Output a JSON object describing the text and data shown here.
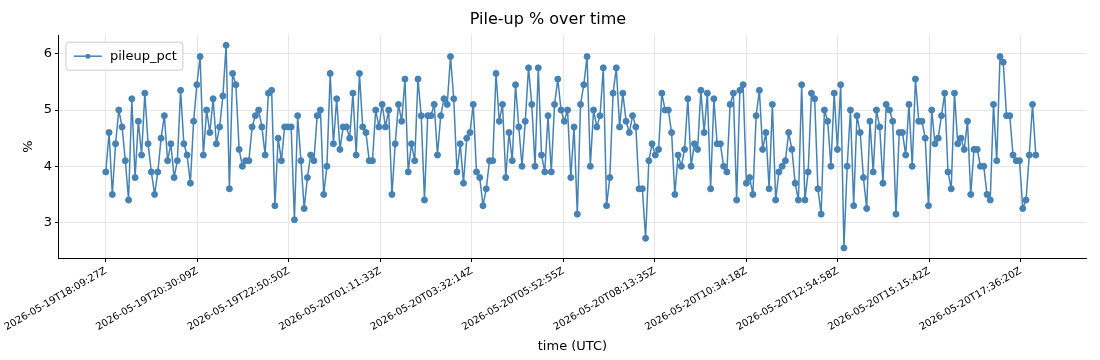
{
  "chart_data": {
    "type": "line",
    "title": "Pile-up % over time",
    "xlabel": "time (UTC)",
    "ylabel": "%",
    "x": [
      "2026-05-19T18:09:27",
      "2026-05-19T18:14:27",
      "2026-05-19T18:19:27",
      "2026-05-19T18:24:27",
      "2026-05-19T18:29:27",
      "2026-05-19T18:34:27",
      "2026-05-19T18:39:27",
      "2026-05-19T18:44:27",
      "2026-05-19T18:49:27",
      "2026-05-19T18:54:27",
      "2026-05-19T18:59:27",
      "2026-05-19T19:04:27",
      "2026-05-19T19:09:27",
      "2026-05-19T19:14:27",
      "2026-05-19T19:19:27",
      "2026-05-19T19:24:27",
      "2026-05-19T19:29:27",
      "2026-05-19T19:34:27",
      "2026-05-19T19:39:27",
      "2026-05-19T19:44:27",
      "2026-05-19T19:49:27",
      "2026-05-19T19:54:27",
      "2026-05-19T19:59:27",
      "2026-05-19T20:04:27",
      "2026-05-19T20:09:27",
      "2026-05-19T20:14:27",
      "2026-05-19T20:19:27",
      "2026-05-19T20:24:27",
      "2026-05-19T20:29:27",
      "2026-05-19T20:34:27",
      "2026-05-19T20:39:27",
      "2026-05-19T20:44:27",
      "2026-05-19T20:49:27",
      "2026-05-19T20:54:27",
      "2026-05-19T20:59:27",
      "2026-05-19T21:04:27",
      "2026-05-19T21:09:27",
      "2026-05-19T21:14:27",
      "2026-05-19T21:19:27",
      "2026-05-19T21:24:27",
      "2026-05-19T21:29:27",
      "2026-05-19T21:34:27",
      "2026-05-19T21:39:27",
      "2026-05-19T21:44:27",
      "2026-05-19T21:49:27",
      "2026-05-19T21:54:27",
      "2026-05-19T21:59:27",
      "2026-05-19T22:04:27",
      "2026-05-19T22:09:27",
      "2026-05-19T22:14:27",
      "2026-05-19T22:19:27",
      "2026-05-19T22:24:27",
      "2026-05-19T22:29:27",
      "2026-05-19T22:34:27",
      "2026-05-19T22:39:27",
      "2026-05-19T22:44:27",
      "2026-05-19T22:49:27",
      "2026-05-19T22:54:27",
      "2026-05-19T22:59:27",
      "2026-05-19T23:04:27",
      "2026-05-19T23:09:27",
      "2026-05-19T23:14:27",
      "2026-05-19T23:19:27",
      "2026-05-19T23:24:27",
      "2026-05-19T23:29:27",
      "2026-05-19T23:34:27",
      "2026-05-19T23:39:27",
      "2026-05-19T23:44:27",
      "2026-05-19T23:49:27",
      "2026-05-19T23:54:27",
      "2026-05-19T23:59:27",
      "2026-05-20T00:04:27",
      "2026-05-20T00:09:27",
      "2026-05-20T00:14:27",
      "2026-05-20T00:19:27",
      "2026-05-20T00:24:27",
      "2026-05-20T00:29:27",
      "2026-05-20T00:34:27",
      "2026-05-20T00:39:27",
      "2026-05-20T00:44:27",
      "2026-05-20T00:49:27",
      "2026-05-20T00:54:27",
      "2026-05-20T00:59:27",
      "2026-05-20T01:04:27",
      "2026-05-20T01:09:27",
      "2026-05-20T01:14:27",
      "2026-05-20T01:19:27",
      "2026-05-20T01:24:27",
      "2026-05-20T01:29:27",
      "2026-05-20T01:34:27",
      "2026-05-20T01:39:27",
      "2026-05-20T01:44:27",
      "2026-05-20T01:49:27",
      "2026-05-20T01:54:27",
      "2026-05-20T01:59:27",
      "2026-05-20T02:04:27",
      "2026-05-20T02:09:27",
      "2026-05-20T02:14:27",
      "2026-05-20T02:19:27",
      "2026-05-20T02:24:27",
      "2026-05-20T02:29:27",
      "2026-05-20T02:34:27",
      "2026-05-20T02:39:27",
      "2026-05-20T02:44:27",
      "2026-05-20T02:49:27",
      "2026-05-20T02:54:27",
      "2026-05-20T02:59:27",
      "2026-05-20T03:04:27",
      "2026-05-20T03:09:27",
      "2026-05-20T03:14:27",
      "2026-05-20T03:19:27",
      "2026-05-20T03:24:27",
      "2026-05-20T03:29:27",
      "2026-05-20T03:34:27",
      "2026-05-20T03:39:27",
      "2026-05-20T03:44:27",
      "2026-05-20T03:49:27",
      "2026-05-20T03:54:27",
      "2026-05-20T03:59:27",
      "2026-05-20T04:04:27",
      "2026-05-20T04:09:27",
      "2026-05-20T04:14:27",
      "2026-05-20T04:19:27",
      "2026-05-20T04:24:27",
      "2026-05-20T04:29:27",
      "2026-05-20T04:34:27",
      "2026-05-20T04:39:27",
      "2026-05-20T04:44:27",
      "2026-05-20T04:49:27",
      "2026-05-20T04:54:27",
      "2026-05-20T04:59:27",
      "2026-05-20T05:04:27",
      "2026-05-20T05:09:27",
      "2026-05-20T05:14:27",
      "2026-05-20T05:19:27",
      "2026-05-20T05:24:27",
      "2026-05-20T05:29:27",
      "2026-05-20T05:34:27",
      "2026-05-20T05:39:27",
      "2026-05-20T05:44:27",
      "2026-05-20T05:49:27",
      "2026-05-20T05:54:27",
      "2026-05-20T05:59:27",
      "2026-05-20T06:04:27",
      "2026-05-20T06:09:27",
      "2026-05-20T06:14:27",
      "2026-05-20T06:19:27",
      "2026-05-20T06:24:27",
      "2026-05-20T06:29:27",
      "2026-05-20T06:34:27",
      "2026-05-20T06:39:27",
      "2026-05-20T06:44:27",
      "2026-05-20T06:49:27",
      "2026-05-20T06:54:27",
      "2026-05-20T06:59:27",
      "2026-05-20T07:04:27",
      "2026-05-20T07:09:27",
      "2026-05-20T07:14:27",
      "2026-05-20T07:19:27",
      "2026-05-20T07:24:27",
      "2026-05-20T07:29:27",
      "2026-05-20T07:34:27",
      "2026-05-20T07:39:27",
      "2026-05-20T07:44:27",
      "2026-05-20T07:49:27",
      "2026-05-20T07:54:27",
      "2026-05-20T07:59:27",
      "2026-05-20T08:04:27",
      "2026-05-20T08:09:27",
      "2026-05-20T08:14:27",
      "2026-05-20T08:19:27",
      "2026-05-20T08:24:27",
      "2026-05-20T08:29:27",
      "2026-05-20T08:34:27",
      "2026-05-20T08:39:27",
      "2026-05-20T08:44:27",
      "2026-05-20T08:49:27",
      "2026-05-20T08:54:27",
      "2026-05-20T08:59:27",
      "2026-05-20T09:04:27",
      "2026-05-20T09:09:27",
      "2026-05-20T09:14:27",
      "2026-05-20T09:19:27",
      "2026-05-20T09:24:27",
      "2026-05-20T09:29:27",
      "2026-05-20T09:34:27",
      "2026-05-20T09:39:27",
      "2026-05-20T09:44:27",
      "2026-05-20T09:49:27",
      "2026-05-20T09:54:27",
      "2026-05-20T09:59:27",
      "2026-05-20T10:04:27",
      "2026-05-20T10:09:27",
      "2026-05-20T10:14:27",
      "2026-05-20T10:19:27",
      "2026-05-20T10:24:27",
      "2026-05-20T10:29:27",
      "2026-05-20T10:34:27",
      "2026-05-20T10:39:27",
      "2026-05-20T10:44:27",
      "2026-05-20T10:49:27",
      "2026-05-20T10:54:27",
      "2026-05-20T10:59:27",
      "2026-05-20T11:04:27",
      "2026-05-20T11:09:27",
      "2026-05-20T11:14:27",
      "2026-05-20T11:19:27",
      "2026-05-20T11:24:27",
      "2026-05-20T11:29:27",
      "2026-05-20T11:34:27",
      "2026-05-20T11:39:27",
      "2026-05-20T11:44:27",
      "2026-05-20T11:49:27",
      "2026-05-20T11:54:27",
      "2026-05-20T11:59:27",
      "2026-05-20T12:04:27",
      "2026-05-20T12:09:27",
      "2026-05-20T12:14:27",
      "2026-05-20T12:19:27",
      "2026-05-20T12:24:27",
      "2026-05-20T12:29:27",
      "2026-05-20T12:34:27",
      "2026-05-20T12:39:27",
      "2026-05-20T12:44:27",
      "2026-05-20T12:49:27",
      "2026-05-20T12:54:27",
      "2026-05-20T12:59:27",
      "2026-05-20T13:04:27",
      "2026-05-20T13:09:27",
      "2026-05-20T13:14:27",
      "2026-05-20T13:19:27",
      "2026-05-20T13:24:27",
      "2026-05-20T13:29:27",
      "2026-05-20T13:34:27",
      "2026-05-20T13:39:27",
      "2026-05-20T13:44:27",
      "2026-05-20T13:49:27",
      "2026-05-20T13:54:27",
      "2026-05-20T13:59:27",
      "2026-05-20T14:04:27",
      "2026-05-20T14:09:27",
      "2026-05-20T14:14:27",
      "2026-05-20T14:19:27",
      "2026-05-20T14:24:27",
      "2026-05-20T14:29:27",
      "2026-05-20T14:34:27",
      "2026-05-20T14:39:27",
      "2026-05-20T14:44:27",
      "2026-05-20T14:49:27",
      "2026-05-20T14:54:27",
      "2026-05-20T14:59:27",
      "2026-05-20T15:04:27",
      "2026-05-20T15:09:27",
      "2026-05-20T15:14:27",
      "2026-05-20T15:19:27",
      "2026-05-20T15:24:27",
      "2026-05-20T15:29:27",
      "2026-05-20T15:34:27",
      "2026-05-20T15:39:27",
      "2026-05-20T15:44:27",
      "2026-05-20T15:49:27",
      "2026-05-20T15:54:27",
      "2026-05-20T15:59:27",
      "2026-05-20T16:04:27",
      "2026-05-20T16:09:27",
      "2026-05-20T16:14:27",
      "2026-05-20T16:19:27",
      "2026-05-20T16:24:27",
      "2026-05-20T16:29:27",
      "2026-05-20T16:34:27",
      "2026-05-20T16:39:27",
      "2026-05-20T16:44:27",
      "2026-05-20T16:49:27",
      "2026-05-20T16:54:27",
      "2026-05-20T16:59:27",
      "2026-05-20T17:04:27",
      "2026-05-20T17:09:27",
      "2026-05-20T17:14:27",
      "2026-05-20T17:19:27",
      "2026-05-20T17:24:27",
      "2026-05-20T17:29:27",
      "2026-05-20T17:34:27",
      "2026-05-20T17:39:27",
      "2026-05-20T17:44:27",
      "2026-05-20T17:49:27",
      "2026-05-20T17:54:27",
      "2026-05-20T17:59:27"
    ],
    "series": [
      {
        "name": "pileup_pct",
        "color": "#4682b4",
        "values": [
          3.9,
          4.6,
          3.5,
          4.4,
          5.0,
          4.7,
          4.1,
          3.4,
          5.2,
          3.8,
          4.8,
          4.2,
          5.3,
          4.4,
          3.9,
          3.5,
          3.9,
          4.5,
          4.9,
          4.1,
          4.4,
          3.8,
          4.1,
          5.35,
          4.4,
          4.2,
          3.7,
          4.8,
          5.45,
          5.95,
          4.2,
          5.0,
          4.6,
          5.2,
          4.4,
          4.7,
          5.25,
          6.15,
          3.6,
          5.65,
          5.45,
          4.3,
          4.0,
          4.1,
          4.1,
          4.7,
          4.9,
          5.0,
          4.7,
          4.2,
          5.3,
          5.35,
          3.3,
          4.5,
          4.1,
          4.7,
          4.7,
          4.7,
          3.05,
          4.9,
          4.1,
          3.25,
          3.8,
          4.2,
          4.1,
          4.9,
          5.0,
          3.5,
          4.0,
          5.65,
          4.4,
          5.2,
          4.3,
          4.7,
          4.7,
          4.5,
          5.3,
          4.2,
          5.65,
          4.7,
          4.6,
          4.1,
          4.1,
          5.0,
          4.7,
          5.1,
          4.7,
          5.0,
          3.5,
          4.4,
          5.1,
          4.8,
          5.55,
          3.9,
          4.4,
          4.1,
          5.55,
          4.9,
          3.4,
          4.9,
          4.9,
          5.1,
          4.2,
          4.9,
          5.2,
          5.1,
          5.95,
          5.2,
          3.9,
          4.4,
          3.7,
          4.5,
          4.6,
          5.1,
          3.9,
          3.8,
          3.3,
          3.6,
          4.1,
          4.1,
          5.65,
          4.8,
          5.1,
          3.8,
          4.6,
          4.1,
          5.45,
          4.7,
          4.0,
          4.8,
          5.75,
          5.1,
          4.0,
          5.75,
          4.2,
          3.9,
          4.9,
          3.9,
          5.1,
          5.55,
          5.0,
          4.8,
          5.0,
          3.8,
          4.7,
          3.15,
          5.1,
          5.45,
          5.95,
          4.0,
          5.0,
          4.7,
          4.9,
          5.75,
          3.3,
          3.8,
          5.3,
          5.75,
          4.7,
          5.3,
          4.8,
          4.6,
          4.9,
          4.7,
          3.6,
          3.6,
          2.72,
          4.1,
          4.4,
          4.2,
          4.3,
          5.3,
          5.0,
          5.0,
          4.6,
          3.5,
          4.2,
          4.0,
          4.3,
          5.2,
          4.0,
          4.4,
          4.3,
          5.35,
          4.6,
          5.3,
          3.6,
          5.2,
          4.4,
          4.4,
          4.0,
          3.9,
          5.1,
          5.3,
          3.4,
          5.35,
          5.45,
          3.7,
          3.8,
          3.5,
          4.9,
          5.35,
          4.3,
          4.6,
          3.6,
          5.1,
          3.4,
          3.9,
          4.0,
          4.1,
          4.6,
          4.3,
          3.7,
          3.4,
          5.45,
          3.4,
          3.9,
          5.3,
          5.2,
          3.6,
          3.15,
          5.0,
          4.8,
          4.0,
          5.3,
          4.3,
          5.45,
          2.55,
          4.0,
          5.0,
          3.3,
          4.9,
          4.6,
          3.8,
          3.25,
          4.8,
          3.9,
          5.0,
          4.7,
          3.7,
          5.1,
          5.0,
          4.8,
          3.15,
          4.6,
          4.6,
          4.2,
          5.1,
          4.0,
          5.55,
          4.8,
          4.8,
          4.5,
          3.3,
          5.0,
          4.4,
          4.5,
          4.9,
          5.3,
          3.9,
          3.6,
          5.3,
          4.4,
          4.5,
          4.3,
          4.8,
          3.5,
          4.3,
          4.3,
          4.0,
          4.0,
          3.5,
          3.4,
          5.1,
          4.1,
          5.95,
          5.85,
          4.9,
          4.9,
          4.2,
          4.1,
          4.1,
          3.25,
          3.4,
          4.2,
          5.1,
          4.2
        ]
      }
    ],
    "xlim": [
      "2026-05-19T16:57:20",
      "2026-05-20T19:16:41"
    ],
    "xticks": [
      {
        "value": "2026-05-19T18:09:27",
        "label": "2026-05-19T18:09:27Z"
      },
      {
        "value": "2026-05-19T20:30:09",
        "label": "2026-05-19T20:30:09Z"
      },
      {
        "value": "2026-05-19T22:50:50",
        "label": "2026-05-19T22:50:50Z"
      },
      {
        "value": "2026-05-20T01:11:33",
        "label": "2026-05-20T01:11:33Z"
      },
      {
        "value": "2026-05-20T03:32:14",
        "label": "2026-05-20T03:32:14Z"
      },
      {
        "value": "2026-05-20T05:52:55",
        "label": "2026-05-20T05:52:55Z"
      },
      {
        "value": "2026-05-20T08:13:35",
        "label": "2026-05-20T08:13:35Z"
      },
      {
        "value": "2026-05-20T10:34:18",
        "label": "2026-05-20T10:34:18Z"
      },
      {
        "value": "2026-05-20T12:54:58",
        "label": "2026-05-20T12:54:58Z"
      },
      {
        "value": "2026-05-20T15:15:42",
        "label": "2026-05-20T15:15:42Z"
      },
      {
        "value": "2026-05-20T17:36:20",
        "label": "2026-05-20T17:36:20Z"
      }
    ],
    "ylim": [
      2.37,
      6.33
    ],
    "yticks": [
      3,
      4,
      5,
      6
    ],
    "grid": true,
    "legend": "top left",
    "marker": "circle",
    "line_style": "solid"
  }
}
